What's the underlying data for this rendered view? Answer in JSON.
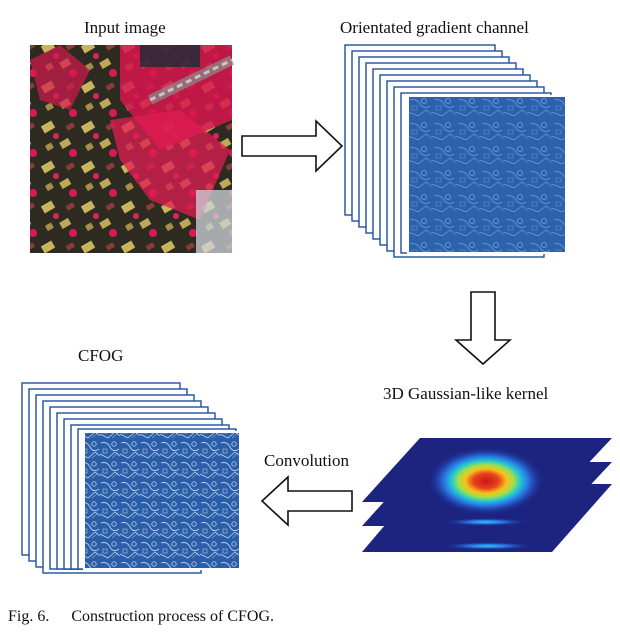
{
  "labels": {
    "input_image": "Input image",
    "oriented_gradient_channel": "Orientated gradient channel",
    "cfog": "CFOG",
    "kernel": "3D Gaussian-like kernel",
    "convolution": "Convolution"
  },
  "caption": {
    "figure_number": "Fig. 6.",
    "text": "Construction process of CFOG."
  },
  "colors": {
    "channel_frame": "#1f4fa0",
    "channel_fill": "#2b5fa8",
    "vegetation": "#e8174f",
    "kernel_low": "#1a2a8a",
    "kernel_peak": "#c81818"
  },
  "icons": [
    "arrow-right-icon",
    "arrow-down-icon",
    "arrow-left-icon"
  ]
}
